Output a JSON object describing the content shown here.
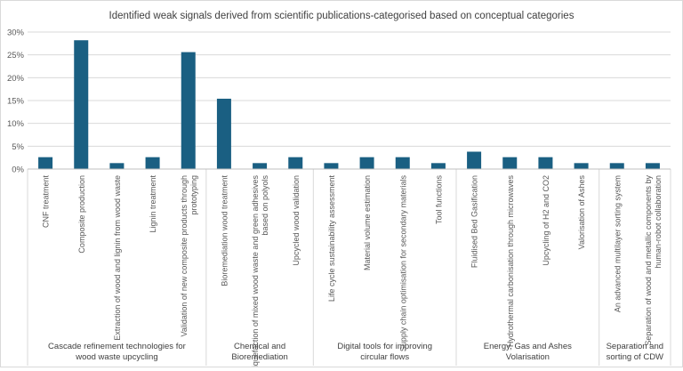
{
  "chart_data": {
    "type": "bar",
    "title": "Identified weak signals derived from scientific publications-categorised based on conceptual categories",
    "ylim": [
      0,
      0.3
    ],
    "yticks": [
      "0%",
      "5%",
      "10%",
      "15%",
      "20%",
      "25%",
      "30%"
    ],
    "grid": true,
    "bar_color": "#1a5f82",
    "categories": [
      "CNF treatment",
      "Composite production",
      "Extraction of wood and lignin from wood waste",
      "Lignin treatment",
      "Validation of new composite products through prototyping",
      "Bioremediation wood treatment",
      "Liquefaction of mixed wood waste and green adhesives based on polyols",
      "Upcycled wood validation",
      "Life cycle sustainability assessment",
      "Material volume estimation",
      "Supply chain optimisation for secondary materials",
      "Tool functions",
      "Fluidised Bed Gasification",
      "Hydrothermal carbonisation through microwaves",
      "Upcycling of H2 and CO2",
      "Valorisation of Ashes",
      "An advanced multilayer sorting system",
      "Separation of wood and metallic components by human-robot collaboration"
    ],
    "values": [
      0.026,
      0.282,
      0.013,
      0.026,
      0.256,
      0.154,
      0.013,
      0.026,
      0.013,
      0.026,
      0.026,
      0.013,
      0.038,
      0.026,
      0.026,
      0.013,
      0.013,
      0.013
    ],
    "groups": [
      {
        "label": "Cascade refinement technologies for wood waste upcycling",
        "count": 5
      },
      {
        "label": "Chemical and Bioremediation",
        "count": 3
      },
      {
        "label": "Digital tools for improving circular flows",
        "count": 4
      },
      {
        "label": "Energy, Gas and Ashes Volarisation",
        "count": 4
      },
      {
        "label": "Separation and sorting of CDW",
        "count": 2
      }
    ]
  }
}
